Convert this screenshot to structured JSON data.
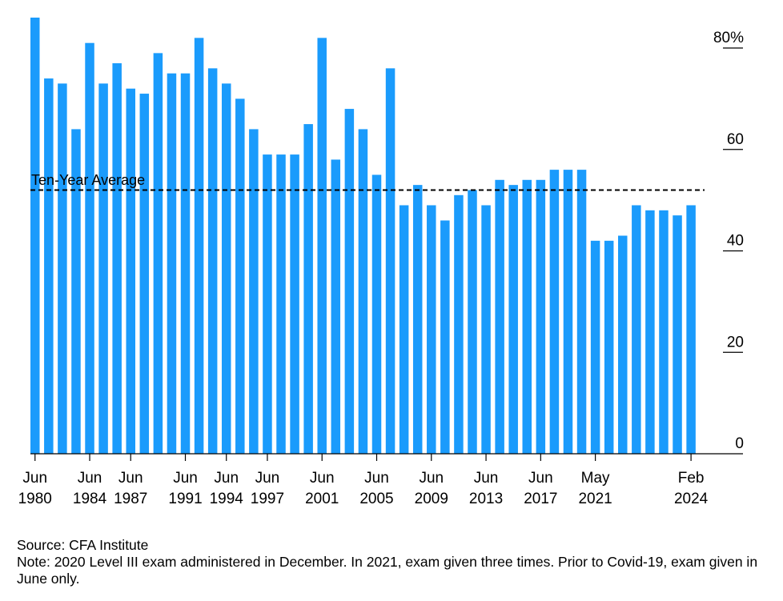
{
  "chart_data": {
    "type": "bar",
    "title": "",
    "xlabel": "",
    "ylabel": "",
    "ylim": [
      0,
      86
    ],
    "y_ticks": [
      {
        "value": 0,
        "label": "0"
      },
      {
        "value": 20,
        "label": "20"
      },
      {
        "value": 40,
        "label": "40"
      },
      {
        "value": 60,
        "label": "60"
      },
      {
        "value": 80,
        "label": "80%"
      }
    ],
    "values": [
      86,
      74,
      73,
      64,
      81,
      73,
      77,
      72,
      71,
      79,
      75,
      75,
      82,
      76,
      73,
      70,
      64,
      59,
      59,
      59,
      65,
      82,
      58,
      68,
      64,
      55,
      76,
      49,
      53,
      49,
      46,
      51,
      52,
      49,
      54,
      53,
      54,
      54,
      56,
      56,
      56,
      42,
      42,
      43,
      49,
      48,
      48,
      47,
      49
    ],
    "x_ticks": [
      {
        "index": 0,
        "month": "Jun",
        "year": "1980"
      },
      {
        "index": 4,
        "month": "Jun",
        "year": "1984"
      },
      {
        "index": 7,
        "month": "Jun",
        "year": "1987"
      },
      {
        "index": 11,
        "month": "Jun",
        "year": "1991"
      },
      {
        "index": 14,
        "month": "Jun",
        "year": "1994"
      },
      {
        "index": 17,
        "month": "Jun",
        "year": "1997"
      },
      {
        "index": 21,
        "month": "Jun",
        "year": "2001"
      },
      {
        "index": 25,
        "month": "Jun",
        "year": "2005"
      },
      {
        "index": 29,
        "month": "Jun",
        "year": "2009"
      },
      {
        "index": 33,
        "month": "Jun",
        "year": "2013"
      },
      {
        "index": 37,
        "month": "Jun",
        "year": "2017"
      },
      {
        "index": 41,
        "month": "May",
        "year": "2021"
      },
      {
        "index": 48,
        "month": "Feb",
        "year": "2024"
      }
    ],
    "reference_line": {
      "label": "Ten-Year Average",
      "value": 52
    },
    "bar_color": "#1a9bfc",
    "grid": false
  },
  "notes": {
    "source": "Source: CFA Institute",
    "note": "Note: 2020 Level III exam administered in December. In 2021, exam given three times. Prior to Covid-19, exam given in June only."
  }
}
